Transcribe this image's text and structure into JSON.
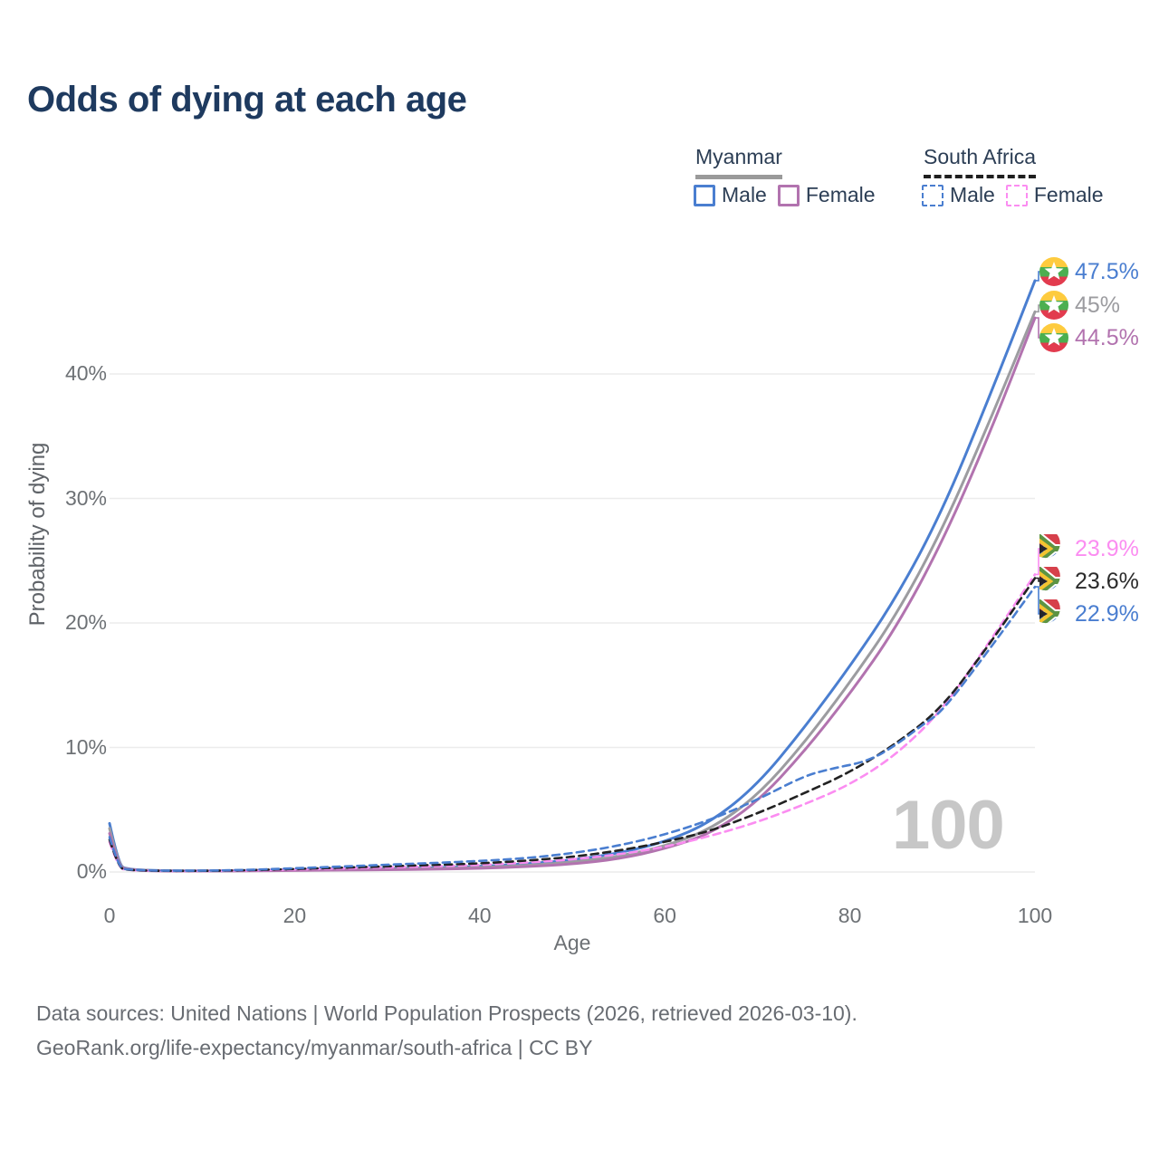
{
  "title": "Odds of dying at each age",
  "colors": {
    "title_text": "#1e3a5f",
    "legend_text": "#2c3e55",
    "axis_text": "#6d7175",
    "gridline": "#ececec",
    "watermark_text": "#c7c7c7",
    "myanmar_underline": "#9a9a9a",
    "south_africa_underline": "#1f1f1f",
    "male_blue": "#4a7ed0",
    "female_purple": "#b273af",
    "total_gray": "#9c9ca0",
    "sa_total_black": "#222222",
    "sa_female_pink": "#fb8df1"
  },
  "legend": {
    "groups": [
      {
        "name": "Myanmar",
        "line_style": "solid",
        "underline_color": "#9a9a9a"
      },
      {
        "name": "South Africa",
        "line_style": "dashed",
        "underline_color": "#1f1f1f"
      }
    ],
    "items": [
      {
        "label": "Male",
        "color": "#4a7ed0",
        "dashed": false
      },
      {
        "label": "Female",
        "color": "#b273af",
        "dashed": false
      },
      {
        "label": "Male",
        "color": "#4a7ed0",
        "dashed": true
      },
      {
        "label": "Female",
        "color": "#fb8df1",
        "dashed": true
      }
    ]
  },
  "chart_data": {
    "type": "line",
    "title": "Odds of dying at each age",
    "xlabel": "Age",
    "ylabel": "Probability of dying",
    "xlim": [
      0,
      100
    ],
    "ylim_pct": [
      0,
      48
    ],
    "xticks": [
      0,
      20,
      40,
      60,
      80,
      100
    ],
    "yticks_pct": [
      0,
      10,
      20,
      30,
      40
    ],
    "ytick_labels": [
      "0%",
      "10%",
      "20%",
      "30%",
      "40%"
    ],
    "grid": "horizontal",
    "legend_position": "top-right",
    "watermark": "100",
    "series": [
      {
        "name": "Myanmar — Male",
        "country": "Myanmar",
        "sex": "Male",
        "flag": "mm",
        "color": "#4a7ed0",
        "dashed": false,
        "end_label": "47.5%",
        "points": [
          [
            0,
            3.9
          ],
          [
            1,
            0.5
          ],
          [
            2,
            0.22
          ],
          [
            5,
            0.1
          ],
          [
            10,
            0.09
          ],
          [
            15,
            0.12
          ],
          [
            20,
            0.18
          ],
          [
            25,
            0.22
          ],
          [
            30,
            0.27
          ],
          [
            35,
            0.33
          ],
          [
            40,
            0.45
          ],
          [
            45,
            0.65
          ],
          [
            50,
            0.95
          ],
          [
            55,
            1.5
          ],
          [
            60,
            2.4
          ],
          [
            65,
            4.0
          ],
          [
            70,
            7.0
          ],
          [
            75,
            11.5
          ],
          [
            80,
            16.5
          ],
          [
            85,
            22.0
          ],
          [
            90,
            29.0
          ],
          [
            95,
            38.0
          ],
          [
            100,
            47.5
          ]
        ]
      },
      {
        "name": "Myanmar — Both sexes",
        "country": "Myanmar",
        "sex": "Both",
        "flag": "mm",
        "color": "#9c9ca0",
        "dashed": false,
        "end_label": "45%",
        "points": [
          [
            0,
            3.5
          ],
          [
            1,
            0.45
          ],
          [
            2,
            0.2
          ],
          [
            5,
            0.09
          ],
          [
            10,
            0.08
          ],
          [
            15,
            0.1
          ],
          [
            20,
            0.15
          ],
          [
            25,
            0.18
          ],
          [
            30,
            0.22
          ],
          [
            35,
            0.27
          ],
          [
            40,
            0.36
          ],
          [
            45,
            0.52
          ],
          [
            50,
            0.78
          ],
          [
            55,
            1.25
          ],
          [
            60,
            2.05
          ],
          [
            65,
            3.45
          ],
          [
            70,
            6.1
          ],
          [
            75,
            10.3
          ],
          [
            80,
            15.2
          ],
          [
            85,
            20.6
          ],
          [
            90,
            27.5
          ],
          [
            95,
            36.0
          ],
          [
            100,
            45.0
          ]
        ]
      },
      {
        "name": "Myanmar — Female",
        "country": "Myanmar",
        "sex": "Female",
        "flag": "mm",
        "color": "#b273af",
        "dashed": false,
        "end_label": "44.5%",
        "points": [
          [
            0,
            3.1
          ],
          [
            1,
            0.4
          ],
          [
            2,
            0.18
          ],
          [
            5,
            0.08
          ],
          [
            10,
            0.07
          ],
          [
            15,
            0.09
          ],
          [
            20,
            0.12
          ],
          [
            25,
            0.15
          ],
          [
            30,
            0.18
          ],
          [
            35,
            0.22
          ],
          [
            40,
            0.29
          ],
          [
            45,
            0.42
          ],
          [
            50,
            0.63
          ],
          [
            55,
            1.05
          ],
          [
            60,
            1.85
          ],
          [
            65,
            3.1
          ],
          [
            70,
            5.6
          ],
          [
            75,
            9.6
          ],
          [
            80,
            14.3
          ],
          [
            85,
            19.6
          ],
          [
            90,
            26.5
          ],
          [
            95,
            35.0
          ],
          [
            100,
            44.5
          ]
        ]
      },
      {
        "name": "South Africa — Female",
        "country": "South Africa",
        "sex": "Female",
        "flag": "za",
        "color": "#fb8df1",
        "dashed": true,
        "end_label": "23.9%",
        "points": [
          [
            0,
            2.4
          ],
          [
            1,
            0.28
          ],
          [
            2,
            0.15
          ],
          [
            5,
            0.08
          ],
          [
            10,
            0.08
          ],
          [
            15,
            0.12
          ],
          [
            20,
            0.2
          ],
          [
            25,
            0.28
          ],
          [
            30,
            0.36
          ],
          [
            35,
            0.45
          ],
          [
            40,
            0.55
          ],
          [
            45,
            0.75
          ],
          [
            50,
            1.0
          ],
          [
            55,
            1.4
          ],
          [
            60,
            2.0
          ],
          [
            65,
            2.9
          ],
          [
            70,
            4.0
          ],
          [
            75,
            5.4
          ],
          [
            80,
            7.0
          ],
          [
            85,
            9.4
          ],
          [
            90,
            13.0
          ],
          [
            95,
            18.4
          ],
          [
            100,
            23.9
          ]
        ]
      },
      {
        "name": "South Africa — Both sexes",
        "country": "South Africa",
        "sex": "Both",
        "flag": "za",
        "color": "#222222",
        "dashed": true,
        "end_label": "23.6%",
        "points": [
          [
            0,
            2.6
          ],
          [
            1,
            0.3
          ],
          [
            2,
            0.16
          ],
          [
            5,
            0.09
          ],
          [
            10,
            0.09
          ],
          [
            15,
            0.14
          ],
          [
            20,
            0.24
          ],
          [
            25,
            0.34
          ],
          [
            30,
            0.45
          ],
          [
            35,
            0.56
          ],
          [
            40,
            0.68
          ],
          [
            45,
            0.9
          ],
          [
            50,
            1.2
          ],
          [
            55,
            1.7
          ],
          [
            60,
            2.4
          ],
          [
            65,
            3.3
          ],
          [
            70,
            4.7
          ],
          [
            75,
            6.3
          ],
          [
            80,
            8.0
          ],
          [
            85,
            10.3
          ],
          [
            90,
            13.2
          ],
          [
            95,
            18.2
          ],
          [
            100,
            23.6
          ]
        ]
      },
      {
        "name": "South Africa — Male",
        "country": "South Africa",
        "sex": "Male",
        "flag": "za",
        "color": "#4a7ed0",
        "dashed": true,
        "end_label": "22.9%",
        "points": [
          [
            0,
            2.8
          ],
          [
            1,
            0.32
          ],
          [
            2,
            0.18
          ],
          [
            5,
            0.1
          ],
          [
            10,
            0.1
          ],
          [
            15,
            0.17
          ],
          [
            20,
            0.3
          ],
          [
            25,
            0.44
          ],
          [
            30,
            0.58
          ],
          [
            35,
            0.72
          ],
          [
            40,
            0.88
          ],
          [
            45,
            1.1
          ],
          [
            50,
            1.5
          ],
          [
            55,
            2.1
          ],
          [
            60,
            3.0
          ],
          [
            65,
            4.2
          ],
          [
            70,
            5.8
          ],
          [
            75,
            7.7
          ],
          [
            78,
            8.3
          ],
          [
            82,
            8.9
          ],
          [
            85,
            10.2
          ],
          [
            88,
            11.9
          ],
          [
            90,
            12.9
          ],
          [
            95,
            17.8
          ],
          [
            100,
            22.9
          ]
        ]
      }
    ]
  },
  "footer": {
    "line1": "Data sources: United Nations | World Population Prospects (2026, retrieved 2026-03-10).",
    "line2": "GeoRank.org/life-expectancy/myanmar/south-africa | CC BY"
  }
}
